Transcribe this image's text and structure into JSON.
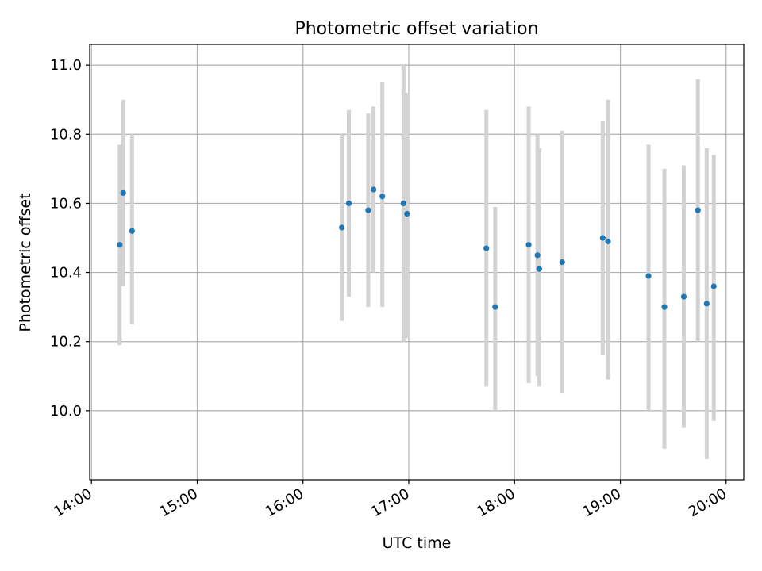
{
  "chart_data": {
    "type": "scatter",
    "title": "Photometric offset variation",
    "xlabel": "UTC time",
    "ylabel": "Photometric offset",
    "x_ticks": [
      "14:00",
      "15:00",
      "16:00",
      "17:00",
      "18:00",
      "19:00",
      "20:00"
    ],
    "y_ticks": [
      "10.0",
      "10.2",
      "10.4",
      "10.6",
      "10.8",
      "11.0"
    ],
    "xlim": [
      "13:59",
      "20:10"
    ],
    "ylim": [
      9.8,
      11.06
    ],
    "grid": true,
    "colors": {
      "marker": "#1f77b4",
      "errorbar": "#d3d3d3",
      "grid": "#b0b0b0"
    },
    "points": [
      {
        "time": "14:16",
        "value": 10.48,
        "err_low": 10.19,
        "err_high": 10.77
      },
      {
        "time": "14:18",
        "value": 10.63,
        "err_low": 10.36,
        "err_high": 10.9
      },
      {
        "time": "14:23",
        "value": 10.52,
        "err_low": 10.25,
        "err_high": 10.8
      },
      {
        "time": "16:22",
        "value": 10.53,
        "err_low": 10.26,
        "err_high": 10.8
      },
      {
        "time": "16:26",
        "value": 10.6,
        "err_low": 10.33,
        "err_high": 10.87
      },
      {
        "time": "16:37",
        "value": 10.58,
        "err_low": 10.3,
        "err_high": 10.86
      },
      {
        "time": "16:40",
        "value": 10.64,
        "err_low": 10.4,
        "err_high": 10.88
      },
      {
        "time": "16:45",
        "value": 10.62,
        "err_low": 10.3,
        "err_high": 10.95
      },
      {
        "time": "16:57",
        "value": 10.6,
        "err_low": 10.2,
        "err_high": 11.0
      },
      {
        "time": "16:59",
        "value": 10.57,
        "err_low": 10.21,
        "err_high": 10.92
      },
      {
        "time": "17:44",
        "value": 10.47,
        "err_low": 10.07,
        "err_high": 10.87
      },
      {
        "time": "17:49",
        "value": 10.3,
        "err_low": 10.0,
        "err_high": 10.59
      },
      {
        "time": "18:08",
        "value": 10.48,
        "err_low": 10.08,
        "err_high": 10.88
      },
      {
        "time": "18:13",
        "value": 10.45,
        "err_low": 10.1,
        "err_high": 10.8
      },
      {
        "time": "18:14",
        "value": 10.41,
        "err_low": 10.07,
        "err_high": 10.76
      },
      {
        "time": "18:27",
        "value": 10.43,
        "err_low": 10.05,
        "err_high": 10.81
      },
      {
        "time": "18:50",
        "value": 10.5,
        "err_low": 10.16,
        "err_high": 10.84
      },
      {
        "time": "18:53",
        "value": 10.49,
        "err_low": 10.09,
        "err_high": 10.9
      },
      {
        "time": "19:16",
        "value": 10.39,
        "err_low": 10.0,
        "err_high": 10.77
      },
      {
        "time": "19:25",
        "value": 10.3,
        "err_low": 9.89,
        "err_high": 10.7
      },
      {
        "time": "19:36",
        "value": 10.33,
        "err_low": 9.95,
        "err_high": 10.71
      },
      {
        "time": "19:44",
        "value": 10.58,
        "err_low": 10.2,
        "err_high": 10.96
      },
      {
        "time": "19:49",
        "value": 10.31,
        "err_low": 9.86,
        "err_high": 10.76
      },
      {
        "time": "19:53",
        "value": 10.36,
        "err_low": 9.97,
        "err_high": 10.74
      }
    ]
  }
}
